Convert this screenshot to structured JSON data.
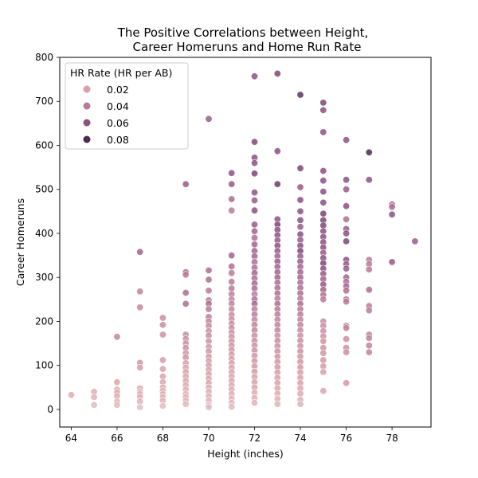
{
  "chart_data": {
    "type": "scatter",
    "title_line1": "The Positive Correlations between Height,",
    "title_line2": "Career Homeruns and Home Run Rate",
    "xlabel": "Height (inches)",
    "ylabel": "Career Homeruns",
    "xlim": [
      63.5,
      79.7
    ],
    "ylim": [
      -40,
      800
    ],
    "xticks": [
      64,
      66,
      68,
      70,
      72,
      74,
      76,
      78
    ],
    "yticks": [
      0,
      100,
      200,
      300,
      400,
      500,
      600,
      700,
      800
    ],
    "grid": false,
    "legend": {
      "title": "HR Rate (HR per AB)",
      "placement": "top-left",
      "entries": [
        {
          "label": "0.02",
          "color": "#d9a1a9"
        },
        {
          "label": "0.04",
          "color": "#b87a97"
        },
        {
          "label": "0.06",
          "color": "#8c4f82"
        },
        {
          "label": "0.08",
          "color": "#4a2c4f"
        }
      ]
    },
    "colors": {
      "low": "#ecd2d2",
      "0.02": "#d9a1a9",
      "0.04": "#b87a97",
      "0.06": "#8c4f82",
      "0.08": "#4a2c4f"
    },
    "points": [
      [
        64,
        33,
        0.015
      ],
      [
        65,
        40,
        0.015
      ],
      [
        65,
        28,
        0.013
      ],
      [
        65,
        10,
        0.01
      ],
      [
        66,
        165,
        0.035
      ],
      [
        66,
        62,
        0.018
      ],
      [
        66,
        45,
        0.016
      ],
      [
        66,
        38,
        0.015
      ],
      [
        66,
        30,
        0.014
      ],
      [
        66,
        18,
        0.012
      ],
      [
        66,
        10,
        0.01
      ],
      [
        67,
        358,
        0.05
      ],
      [
        67,
        268,
        0.035
      ],
      [
        67,
        232,
        0.032
      ],
      [
        67,
        106,
        0.025
      ],
      [
        67,
        95,
        0.022
      ],
      [
        67,
        48,
        0.016
      ],
      [
        67,
        40,
        0.015
      ],
      [
        67,
        35,
        0.014
      ],
      [
        67,
        28,
        0.013
      ],
      [
        67,
        18,
        0.012
      ],
      [
        67,
        5,
        0.008
      ],
      [
        68,
        208,
        0.03
      ],
      [
        68,
        192,
        0.03
      ],
      [
        68,
        170,
        0.028
      ],
      [
        68,
        112,
        0.022
      ],
      [
        68,
        92,
        0.02
      ],
      [
        68,
        75,
        0.018
      ],
      [
        68,
        62,
        0.017
      ],
      [
        68,
        50,
        0.016
      ],
      [
        68,
        42,
        0.015
      ],
      [
        68,
        35,
        0.014
      ],
      [
        68,
        28,
        0.013
      ],
      [
        68,
        20,
        0.012
      ],
      [
        68,
        8,
        0.01
      ],
      [
        69,
        512,
        0.055
      ],
      [
        69,
        312,
        0.045
      ],
      [
        69,
        306,
        0.04
      ],
      [
        69,
        265,
        0.045
      ],
      [
        69,
        240,
        0.045
      ],
      [
        69,
        170,
        0.03
      ],
      [
        69,
        160,
        0.03
      ],
      [
        69,
        150,
        0.028
      ],
      [
        69,
        140,
        0.028
      ],
      [
        69,
        128,
        0.025
      ],
      [
        69,
        118,
        0.025
      ],
      [
        69,
        105,
        0.022
      ],
      [
        69,
        95,
        0.02
      ],
      [
        69,
        85,
        0.02
      ],
      [
        69,
        75,
        0.018
      ],
      [
        69,
        65,
        0.018
      ],
      [
        69,
        55,
        0.016
      ],
      [
        69,
        45,
        0.015
      ],
      [
        69,
        35,
        0.014
      ],
      [
        69,
        28,
        0.013
      ],
      [
        69,
        20,
        0.012
      ],
      [
        69,
        12,
        0.01
      ],
      [
        70,
        660,
        0.055
      ],
      [
        70,
        316,
        0.045
      ],
      [
        70,
        295,
        0.045
      ],
      [
        70,
        270,
        0.04
      ],
      [
        70,
        248,
        0.04
      ],
      [
        70,
        240,
        0.045
      ],
      [
        70,
        228,
        0.04
      ],
      [
        70,
        210,
        0.038
      ],
      [
        70,
        200,
        0.035
      ],
      [
        70,
        190,
        0.032
      ],
      [
        70,
        178,
        0.03
      ],
      [
        70,
        168,
        0.03
      ],
      [
        70,
        155,
        0.028
      ],
      [
        70,
        142,
        0.026
      ],
      [
        70,
        132,
        0.025
      ],
      [
        70,
        120,
        0.024
      ],
      [
        70,
        110,
        0.022
      ],
      [
        70,
        100,
        0.022
      ],
      [
        70,
        90,
        0.02
      ],
      [
        70,
        80,
        0.02
      ],
      [
        70,
        70,
        0.018
      ],
      [
        70,
        60,
        0.018
      ],
      [
        70,
        50,
        0.016
      ],
      [
        70,
        40,
        0.015
      ],
      [
        70,
        30,
        0.014
      ],
      [
        70,
        20,
        0.012
      ],
      [
        70,
        10,
        0.01
      ],
      [
        70,
        5,
        0.009
      ],
      [
        71,
        537,
        0.06
      ],
      [
        71,
        512,
        0.055
      ],
      [
        71,
        478,
        0.045
      ],
      [
        71,
        452,
        0.04
      ],
      [
        71,
        350,
        0.05
      ],
      [
        71,
        325,
        0.045
      ],
      [
        71,
        310,
        0.04
      ],
      [
        71,
        290,
        0.04
      ],
      [
        71,
        275,
        0.04
      ],
      [
        71,
        262,
        0.038
      ],
      [
        71,
        250,
        0.035
      ],
      [
        71,
        240,
        0.035
      ],
      [
        71,
        228,
        0.032
      ],
      [
        71,
        215,
        0.032
      ],
      [
        71,
        205,
        0.03
      ],
      [
        71,
        195,
        0.03
      ],
      [
        71,
        185,
        0.03
      ],
      [
        71,
        175,
        0.028
      ],
      [
        71,
        165,
        0.028
      ],
      [
        71,
        155,
        0.026
      ],
      [
        71,
        145,
        0.026
      ],
      [
        71,
        135,
        0.025
      ],
      [
        71,
        125,
        0.024
      ],
      [
        71,
        115,
        0.022
      ],
      [
        71,
        105,
        0.022
      ],
      [
        71,
        95,
        0.02
      ],
      [
        71,
        85,
        0.02
      ],
      [
        71,
        75,
        0.018
      ],
      [
        71,
        65,
        0.018
      ],
      [
        71,
        55,
        0.017
      ],
      [
        71,
        45,
        0.016
      ],
      [
        71,
        35,
        0.015
      ],
      [
        71,
        25,
        0.013
      ],
      [
        71,
        15,
        0.012
      ],
      [
        71,
        6,
        0.01
      ],
      [
        72,
        757,
        0.06
      ],
      [
        72,
        608,
        0.065
      ],
      [
        72,
        572,
        0.06
      ],
      [
        72,
        560,
        0.06
      ],
      [
        72,
        536,
        0.065
      ],
      [
        72,
        493,
        0.06
      ],
      [
        72,
        475,
        0.055
      ],
      [
        72,
        452,
        0.06
      ],
      [
        72,
        420,
        0.055
      ],
      [
        72,
        405,
        0.05
      ],
      [
        72,
        390,
        0.045
      ],
      [
        72,
        375,
        0.05
      ],
      [
        72,
        360,
        0.05
      ],
      [
        72,
        348,
        0.05
      ],
      [
        72,
        335,
        0.045
      ],
      [
        72,
        322,
        0.045
      ],
      [
        72,
        310,
        0.05
      ],
      [
        72,
        298,
        0.045
      ],
      [
        72,
        286,
        0.05
      ],
      [
        72,
        275,
        0.045
      ],
      [
        72,
        262,
        0.04
      ],
      [
        72,
        250,
        0.045
      ],
      [
        72,
        240,
        0.05
      ],
      [
        72,
        228,
        0.04
      ],
      [
        72,
        216,
        0.04
      ],
      [
        72,
        204,
        0.035
      ],
      [
        72,
        192,
        0.035
      ],
      [
        72,
        180,
        0.035
      ],
      [
        72,
        168,
        0.03
      ],
      [
        72,
        156,
        0.03
      ],
      [
        72,
        145,
        0.028
      ],
      [
        72,
        134,
        0.028
      ],
      [
        72,
        122,
        0.026
      ],
      [
        72,
        110,
        0.025
      ],
      [
        72,
        98,
        0.024
      ],
      [
        72,
        86,
        0.022
      ],
      [
        72,
        74,
        0.02
      ],
      [
        72,
        62,
        0.02
      ],
      [
        72,
        50,
        0.018
      ],
      [
        72,
        38,
        0.016
      ],
      [
        72,
        26,
        0.014
      ],
      [
        72,
        15,
        0.012
      ],
      [
        73,
        763,
        0.065
      ],
      [
        73,
        587,
        0.06
      ],
      [
        73,
        512,
        0.07
      ],
      [
        73,
        432,
        0.06
      ],
      [
        73,
        420,
        0.065
      ],
      [
        73,
        408,
        0.06
      ],
      [
        73,
        396,
        0.06
      ],
      [
        73,
        384,
        0.055
      ],
      [
        73,
        372,
        0.06
      ],
      [
        73,
        360,
        0.055
      ],
      [
        73,
        348,
        0.05
      ],
      [
        73,
        336,
        0.055
      ],
      [
        73,
        324,
        0.05
      ],
      [
        73,
        312,
        0.05
      ],
      [
        73,
        300,
        0.05
      ],
      [
        73,
        288,
        0.045
      ],
      [
        73,
        276,
        0.045
      ],
      [
        73,
        264,
        0.045
      ],
      [
        73,
        252,
        0.04
      ],
      [
        73,
        240,
        0.045
      ],
      [
        73,
        228,
        0.04
      ],
      [
        73,
        216,
        0.04
      ],
      [
        73,
        204,
        0.035
      ],
      [
        73,
        192,
        0.035
      ],
      [
        73,
        180,
        0.035
      ],
      [
        73,
        168,
        0.03
      ],
      [
        73,
        156,
        0.03
      ],
      [
        73,
        144,
        0.028
      ],
      [
        73,
        132,
        0.028
      ],
      [
        73,
        120,
        0.026
      ],
      [
        73,
        108,
        0.025
      ],
      [
        73,
        96,
        0.024
      ],
      [
        73,
        84,
        0.022
      ],
      [
        73,
        72,
        0.02
      ],
      [
        73,
        60,
        0.02
      ],
      [
        73,
        48,
        0.018
      ],
      [
        73,
        36,
        0.016
      ],
      [
        73,
        24,
        0.014
      ],
      [
        73,
        12,
        0.012
      ],
      [
        74,
        715,
        0.075
      ],
      [
        74,
        548,
        0.065
      ],
      [
        74,
        505,
        0.055
      ],
      [
        74,
        476,
        0.06
      ],
      [
        74,
        450,
        0.06
      ],
      [
        74,
        430,
        0.06
      ],
      [
        74,
        415,
        0.055
      ],
      [
        74,
        398,
        0.06
      ],
      [
        74,
        385,
        0.055
      ],
      [
        74,
        372,
        0.06
      ],
      [
        74,
        360,
        0.065
      ],
      [
        74,
        348,
        0.055
      ],
      [
        74,
        336,
        0.055
      ],
      [
        74,
        324,
        0.05
      ],
      [
        74,
        312,
        0.05
      ],
      [
        74,
        300,
        0.05
      ],
      [
        74,
        288,
        0.045
      ],
      [
        74,
        276,
        0.045
      ],
      [
        74,
        264,
        0.045
      ],
      [
        74,
        252,
        0.04
      ],
      [
        74,
        240,
        0.045
      ],
      [
        74,
        228,
        0.04
      ],
      [
        74,
        216,
        0.04
      ],
      [
        74,
        204,
        0.035
      ],
      [
        74,
        192,
        0.035
      ],
      [
        74,
        180,
        0.032
      ],
      [
        74,
        168,
        0.03
      ],
      [
        74,
        156,
        0.03
      ],
      [
        74,
        144,
        0.028
      ],
      [
        74,
        132,
        0.028
      ],
      [
        74,
        120,
        0.026
      ],
      [
        74,
        108,
        0.025
      ],
      [
        74,
        96,
        0.024
      ],
      [
        74,
        84,
        0.022
      ],
      [
        74,
        72,
        0.02
      ],
      [
        74,
        60,
        0.02
      ],
      [
        74,
        48,
        0.018
      ],
      [
        74,
        36,
        0.016
      ],
      [
        74,
        22,
        0.014
      ],
      [
        74,
        12,
        0.012
      ],
      [
        75,
        697,
        0.065
      ],
      [
        75,
        680,
        0.06
      ],
      [
        75,
        630,
        0.06
      ],
      [
        75,
        542,
        0.06
      ],
      [
        75,
        520,
        0.06
      ],
      [
        75,
        495,
        0.06
      ],
      [
        75,
        470,
        0.06
      ],
      [
        75,
        445,
        0.065
      ],
      [
        75,
        430,
        0.065
      ],
      [
        75,
        418,
        0.065
      ],
      [
        75,
        405,
        0.06
      ],
      [
        75,
        392,
        0.06
      ],
      [
        75,
        380,
        0.06
      ],
      [
        75,
        368,
        0.06
      ],
      [
        75,
        356,
        0.055
      ],
      [
        75,
        344,
        0.06
      ],
      [
        75,
        332,
        0.065
      ],
      [
        75,
        320,
        0.06
      ],
      [
        75,
        308,
        0.055
      ],
      [
        75,
        296,
        0.05
      ],
      [
        75,
        284,
        0.055
      ],
      [
        75,
        272,
        0.05
      ],
      [
        75,
        260,
        0.045
      ],
      [
        75,
        250,
        0.04
      ],
      [
        75,
        200,
        0.03
      ],
      [
        75,
        190,
        0.03
      ],
      [
        75,
        178,
        0.028
      ],
      [
        75,
        166,
        0.028
      ],
      [
        75,
        155,
        0.026
      ],
      [
        75,
        140,
        0.026
      ],
      [
        75,
        128,
        0.025
      ],
      [
        75,
        112,
        0.024
      ],
      [
        75,
        98,
        0.022
      ],
      [
        75,
        85,
        0.02
      ],
      [
        75,
        42,
        0.018
      ],
      [
        76,
        612,
        0.06
      ],
      [
        76,
        522,
        0.06
      ],
      [
        76,
        500,
        0.055
      ],
      [
        76,
        462,
        0.06
      ],
      [
        76,
        432,
        0.045
      ],
      [
        76,
        410,
        0.055
      ],
      [
        76,
        400,
        0.06
      ],
      [
        76,
        382,
        0.065
      ],
      [
        76,
        340,
        0.06
      ],
      [
        76,
        330,
        0.055
      ],
      [
        76,
        320,
        0.055
      ],
      [
        76,
        300,
        0.05
      ],
      [
        76,
        290,
        0.045
      ],
      [
        76,
        280,
        0.05
      ],
      [
        76,
        270,
        0.045
      ],
      [
        76,
        250,
        0.045
      ],
      [
        76,
        245,
        0.04
      ],
      [
        76,
        190,
        0.035
      ],
      [
        76,
        185,
        0.035
      ],
      [
        76,
        160,
        0.03
      ],
      [
        76,
        140,
        0.03
      ],
      [
        76,
        130,
        0.03
      ],
      [
        76,
        60,
        0.025
      ],
      [
        77,
        584,
        0.08
      ],
      [
        77,
        522,
        0.06
      ],
      [
        77,
        340,
        0.04
      ],
      [
        77,
        330,
        0.04
      ],
      [
        77,
        318,
        0.04
      ],
      [
        77,
        272,
        0.045
      ],
      [
        77,
        235,
        0.04
      ],
      [
        77,
        225,
        0.04
      ],
      [
        77,
        170,
        0.035
      ],
      [
        77,
        162,
        0.035
      ],
      [
        77,
        145,
        0.035
      ],
      [
        77,
        130,
        0.035
      ],
      [
        78,
        466,
        0.045
      ],
      [
        78,
        460,
        0.045
      ],
      [
        78,
        443,
        0.06
      ],
      [
        78,
        335,
        0.055
      ],
      [
        79,
        382,
        0.055
      ]
    ]
  }
}
